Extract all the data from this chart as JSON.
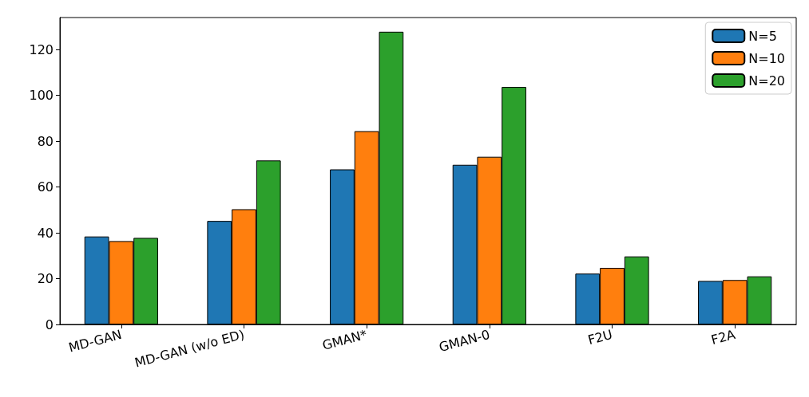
{
  "chart_data": {
    "type": "bar",
    "categories": [
      "MD-GAN",
      "MD-GAN (w/o ED)",
      "GMAN*",
      "GMAN-0",
      "F2U",
      "F2A"
    ],
    "series": [
      {
        "name": "N=5",
        "color": "#1f77b4",
        "values": [
          38.4,
          45.2,
          67.7,
          69.7,
          22.2,
          19.0
        ]
      },
      {
        "name": "N=10",
        "color": "#ff7f0e",
        "values": [
          36.4,
          50.3,
          84.4,
          73.2,
          24.7,
          19.4
        ]
      },
      {
        "name": "N=20",
        "color": "#2ca02c",
        "values": [
          37.8,
          71.6,
          127.8,
          103.7,
          29.7,
          21.0
        ]
      }
    ],
    "ylim": [
      0,
      134
    ],
    "yticks": [
      0,
      20,
      40,
      60,
      80,
      100,
      120
    ],
    "legend": "top right"
  }
}
